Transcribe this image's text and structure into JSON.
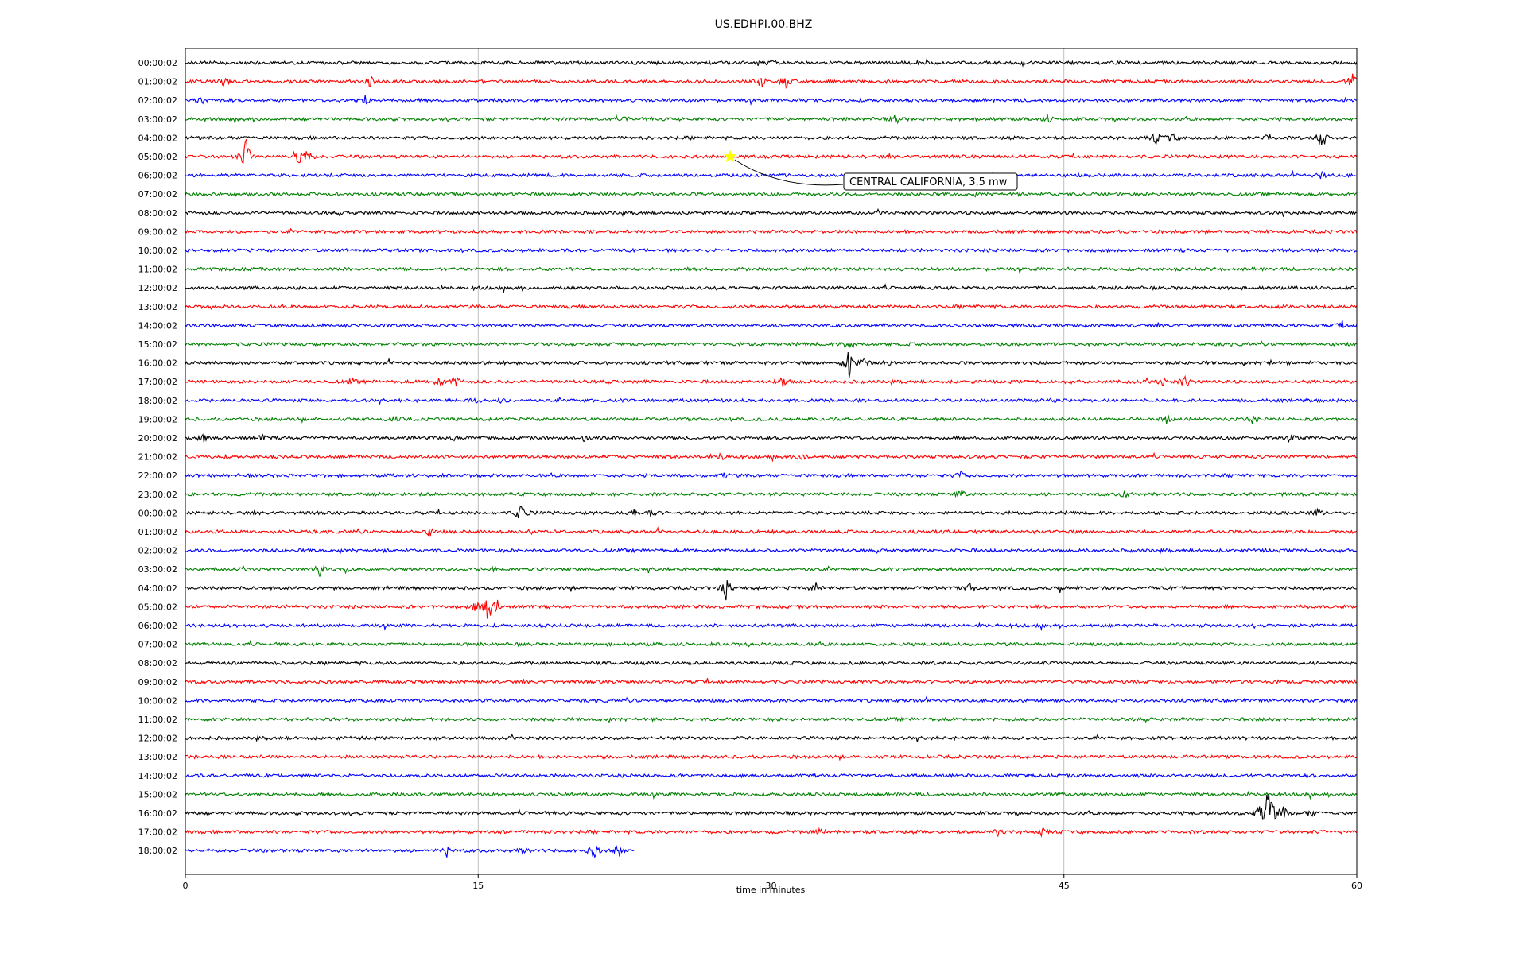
{
  "chart_data": {
    "type": "line",
    "title": "US.EDHPI.00.BHZ",
    "xlabel": "time in minutes",
    "ylabel": "",
    "xlim": [
      0,
      60
    ],
    "xticks": [
      0,
      15,
      30,
      45,
      60
    ],
    "grid": "vertical",
    "trace_colors": [
      "#000000",
      "#ff0000",
      "#0000ff",
      "#008000"
    ],
    "row_labels": [
      "00:00:02",
      "01:00:02",
      "02:00:02",
      "03:00:02",
      "04:00:02",
      "05:00:02",
      "06:00:02",
      "07:00:02",
      "08:00:02",
      "09:00:02",
      "10:00:02",
      "11:00:02",
      "12:00:02",
      "13:00:02",
      "14:00:02",
      "15:00:02",
      "16:00:02",
      "17:00:02",
      "18:00:02",
      "19:00:02",
      "20:00:02",
      "21:00:02",
      "22:00:02",
      "23:00:02",
      "00:00:02",
      "01:00:02",
      "02:00:02",
      "03:00:02",
      "04:00:02",
      "05:00:02",
      "06:00:02",
      "07:00:02",
      "08:00:02",
      "09:00:02",
      "10:00:02",
      "11:00:02",
      "12:00:02",
      "13:00:02",
      "14:00:02",
      "15:00:02",
      "16:00:02",
      "17:00:02",
      "18:00:02"
    ],
    "last_row_end_minute": 23,
    "annotation": {
      "text": "CENTRAL CALIFORNIA, 3.5 mw",
      "row": 5,
      "minute": 27.9,
      "marker": "star",
      "marker_color": "#ffff00"
    },
    "events": [
      {
        "row": 0,
        "minute": 30,
        "amp": 4
      },
      {
        "row": 1,
        "minute": 2,
        "amp": 5
      },
      {
        "row": 1,
        "minute": 9.5,
        "amp": 8
      },
      {
        "row": 1,
        "minute": 29.5,
        "amp": 9
      },
      {
        "row": 1,
        "minute": 30.8,
        "amp": 8
      },
      {
        "row": 1,
        "minute": 59.8,
        "amp": 14
      },
      {
        "row": 2,
        "minute": 0.8,
        "amp": 5
      },
      {
        "row": 2,
        "minute": 9.2,
        "amp": 8
      },
      {
        "row": 3,
        "minute": 22.7,
        "amp": 4
      },
      {
        "row": 3,
        "minute": 36.4,
        "amp": 6
      },
      {
        "row": 3,
        "minute": 44.2,
        "amp": 4
      },
      {
        "row": 4,
        "minute": 49.7,
        "amp": 8
      },
      {
        "row": 4,
        "minute": 50.5,
        "amp": 8
      },
      {
        "row": 4,
        "minute": 55.5,
        "amp": 6
      },
      {
        "row": 4,
        "minute": 58.2,
        "amp": 18
      },
      {
        "row": 5,
        "minute": 3.1,
        "amp": 25
      },
      {
        "row": 5,
        "minute": 5.8,
        "amp": 20
      },
      {
        "row": 5,
        "minute": 6.3,
        "amp": 8
      },
      {
        "row": 6,
        "minute": 58.2,
        "amp": 5
      },
      {
        "row": 14,
        "minute": 59.2,
        "amp": 4
      },
      {
        "row": 15,
        "minute": 11.2,
        "amp": 4
      },
      {
        "row": 15,
        "minute": 34.0,
        "amp": 14
      },
      {
        "row": 16,
        "minute": 34.0,
        "amp": 22
      },
      {
        "row": 16,
        "minute": 34.8,
        "amp": 10
      },
      {
        "row": 16,
        "minute": 36.0,
        "amp": 5
      },
      {
        "row": 16,
        "minute": 55.5,
        "amp": 4
      },
      {
        "row": 17,
        "minute": 8.5,
        "amp": 4
      },
      {
        "row": 17,
        "minute": 13.0,
        "amp": 8
      },
      {
        "row": 17,
        "minute": 13.8,
        "amp": 9
      },
      {
        "row": 17,
        "minute": 30.6,
        "amp": 9
      },
      {
        "row": 17,
        "minute": 50.0,
        "amp": 7
      },
      {
        "row": 17,
        "minute": 51.2,
        "amp": 9
      },
      {
        "row": 18,
        "minute": 14.8,
        "amp": 4
      },
      {
        "row": 18,
        "minute": 16.2,
        "amp": 3
      },
      {
        "row": 18,
        "minute": 44.5,
        "amp": 3
      },
      {
        "row": 19,
        "minute": 10.8,
        "amp": 5
      },
      {
        "row": 19,
        "minute": 50.2,
        "amp": 7
      },
      {
        "row": 19,
        "minute": 54.6,
        "amp": 6
      },
      {
        "row": 20,
        "minute": 0.9,
        "amp": 5
      },
      {
        "row": 20,
        "minute": 3.9,
        "amp": 4
      },
      {
        "row": 20,
        "minute": 13.9,
        "amp": 4
      },
      {
        "row": 20,
        "minute": 20.4,
        "amp": 5
      },
      {
        "row": 20,
        "minute": 56.7,
        "amp": 4
      },
      {
        "row": 21,
        "minute": 27.5,
        "amp": 5
      },
      {
        "row": 21,
        "minute": 31.6,
        "amp": 6
      },
      {
        "row": 22,
        "minute": 27.6,
        "amp": 4
      },
      {
        "row": 22,
        "minute": 39.7,
        "amp": 5
      },
      {
        "row": 23,
        "minute": 39.7,
        "amp": 7
      },
      {
        "row": 23,
        "minute": 48.1,
        "amp": 5
      },
      {
        "row": 24,
        "minute": 17.2,
        "amp": 17
      },
      {
        "row": 24,
        "minute": 23.0,
        "amp": 5
      },
      {
        "row": 24,
        "minute": 23.9,
        "amp": 6
      },
      {
        "row": 24,
        "minute": 57.9,
        "amp": 6
      },
      {
        "row": 25,
        "minute": 12.5,
        "amp": 5
      },
      {
        "row": 25,
        "minute": 17.7,
        "amp": 3
      },
      {
        "row": 27,
        "minute": 6.9,
        "amp": 9
      },
      {
        "row": 27,
        "minute": 8.2,
        "amp": 3
      },
      {
        "row": 27,
        "minute": 15.8,
        "amp": 3
      },
      {
        "row": 28,
        "minute": 27.7,
        "amp": 14
      },
      {
        "row": 28,
        "minute": 32.3,
        "amp": 6
      },
      {
        "row": 28,
        "minute": 40.2,
        "amp": 6
      },
      {
        "row": 28,
        "minute": 44.8,
        "amp": 4
      },
      {
        "row": 29,
        "minute": 14.9,
        "amp": 8
      },
      {
        "row": 29,
        "minute": 15.5,
        "amp": 22
      },
      {
        "row": 29,
        "minute": 16.0,
        "amp": 8
      },
      {
        "row": 40,
        "minute": 55.5,
        "amp": 46
      },
      {
        "row": 40,
        "minute": 55.0,
        "amp": 12
      },
      {
        "row": 40,
        "minute": 56.2,
        "amp": 10
      },
      {
        "row": 40,
        "minute": 57.6,
        "amp": 5
      },
      {
        "row": 41,
        "minute": 32.5,
        "amp": 5
      },
      {
        "row": 41,
        "minute": 41.6,
        "amp": 4
      },
      {
        "row": 41,
        "minute": 43.9,
        "amp": 5
      },
      {
        "row": 42,
        "minute": 13.4,
        "amp": 7
      },
      {
        "row": 42,
        "minute": 17.4,
        "amp": 5
      },
      {
        "row": 42,
        "minute": 20.9,
        "amp": 12
      },
      {
        "row": 42,
        "minute": 22.2,
        "amp": 9
      }
    ]
  }
}
